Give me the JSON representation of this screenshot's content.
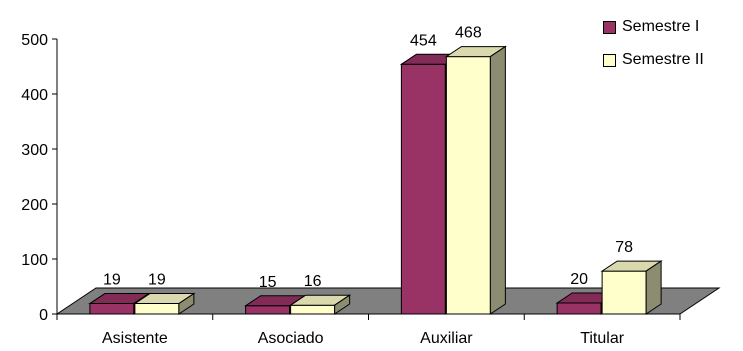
{
  "chart_data": {
    "type": "bar",
    "title": "",
    "xlabel": "",
    "ylabel": "",
    "categories": [
      "Asistente",
      "Asociado",
      "Auxiliar",
      "Titular"
    ],
    "series": [
      {
        "name": "Semestre I",
        "values": [
          19,
          15,
          454,
          20
        ],
        "color": "#993366"
      },
      {
        "name": "Semestre II",
        "values": [
          19,
          16,
          468,
          78
        ],
        "color": "#FFFFCC"
      }
    ],
    "ylim": [
      0,
      500
    ],
    "yticks": [
      "0",
      "100",
      "200",
      "300",
      "400",
      "500"
    ],
    "three_d": true,
    "floor_color": "#808080",
    "grid": false,
    "legend_position": "top-right"
  }
}
